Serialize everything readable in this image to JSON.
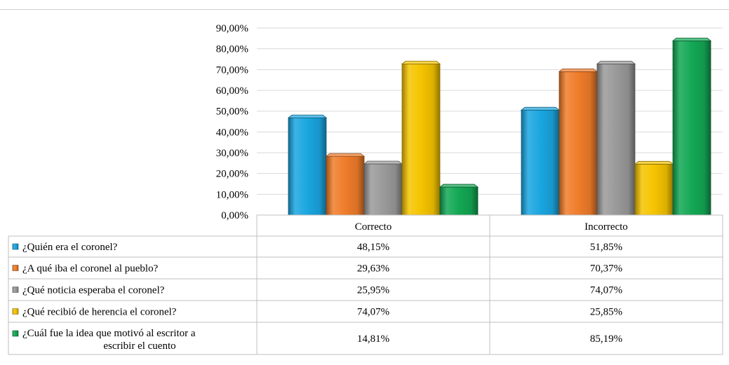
{
  "chart_data": {
    "type": "bar",
    "categories": [
      "Correcto",
      "Incorrecto"
    ],
    "series": [
      {
        "name": "¿Quién era el coronel?",
        "values": [
          48.15,
          51.85
        ],
        "labels": [
          "48,15%",
          "51,85%"
        ],
        "color": "#1aa6e0"
      },
      {
        "name": "¿A  qué iba el coronel al pueblo?",
        "values": [
          29.63,
          70.37
        ],
        "labels": [
          "29,63%",
          "70,37%"
        ],
        "color": "#f07c2a"
      },
      {
        "name": "¿Qué noticia esperaba el coronel?",
        "values": [
          25.95,
          74.07
        ],
        "labels": [
          "25,95%",
          "74,07%"
        ],
        "color": "#9a9a9a"
      },
      {
        "name": "¿Qué recibió de herencia el coronel?",
        "values": [
          74.07,
          25.85
        ],
        "labels": [
          "74,07%",
          "25,85%"
        ],
        "color": "#f5c400"
      },
      {
        "name": "¿Cuál fue la idea que motivó al escritor a escribir el cuento",
        "name_lines": [
          "¿Cuál fue la idea que motivó al escritor a",
          "escribir el cuento"
        ],
        "values": [
          14.81,
          85.19
        ],
        "labels": [
          "14,81%",
          "85,19%"
        ],
        "color": "#13a854"
      }
    ],
    "yticks": [
      "0,00%",
      "10,00%",
      "20,00%",
      "30,00%",
      "40,00%",
      "50,00%",
      "60,00%",
      "70,00%",
      "80,00%",
      "90,00%"
    ],
    "ylim": [
      0,
      90
    ],
    "grid": true,
    "legend": "data-table"
  }
}
